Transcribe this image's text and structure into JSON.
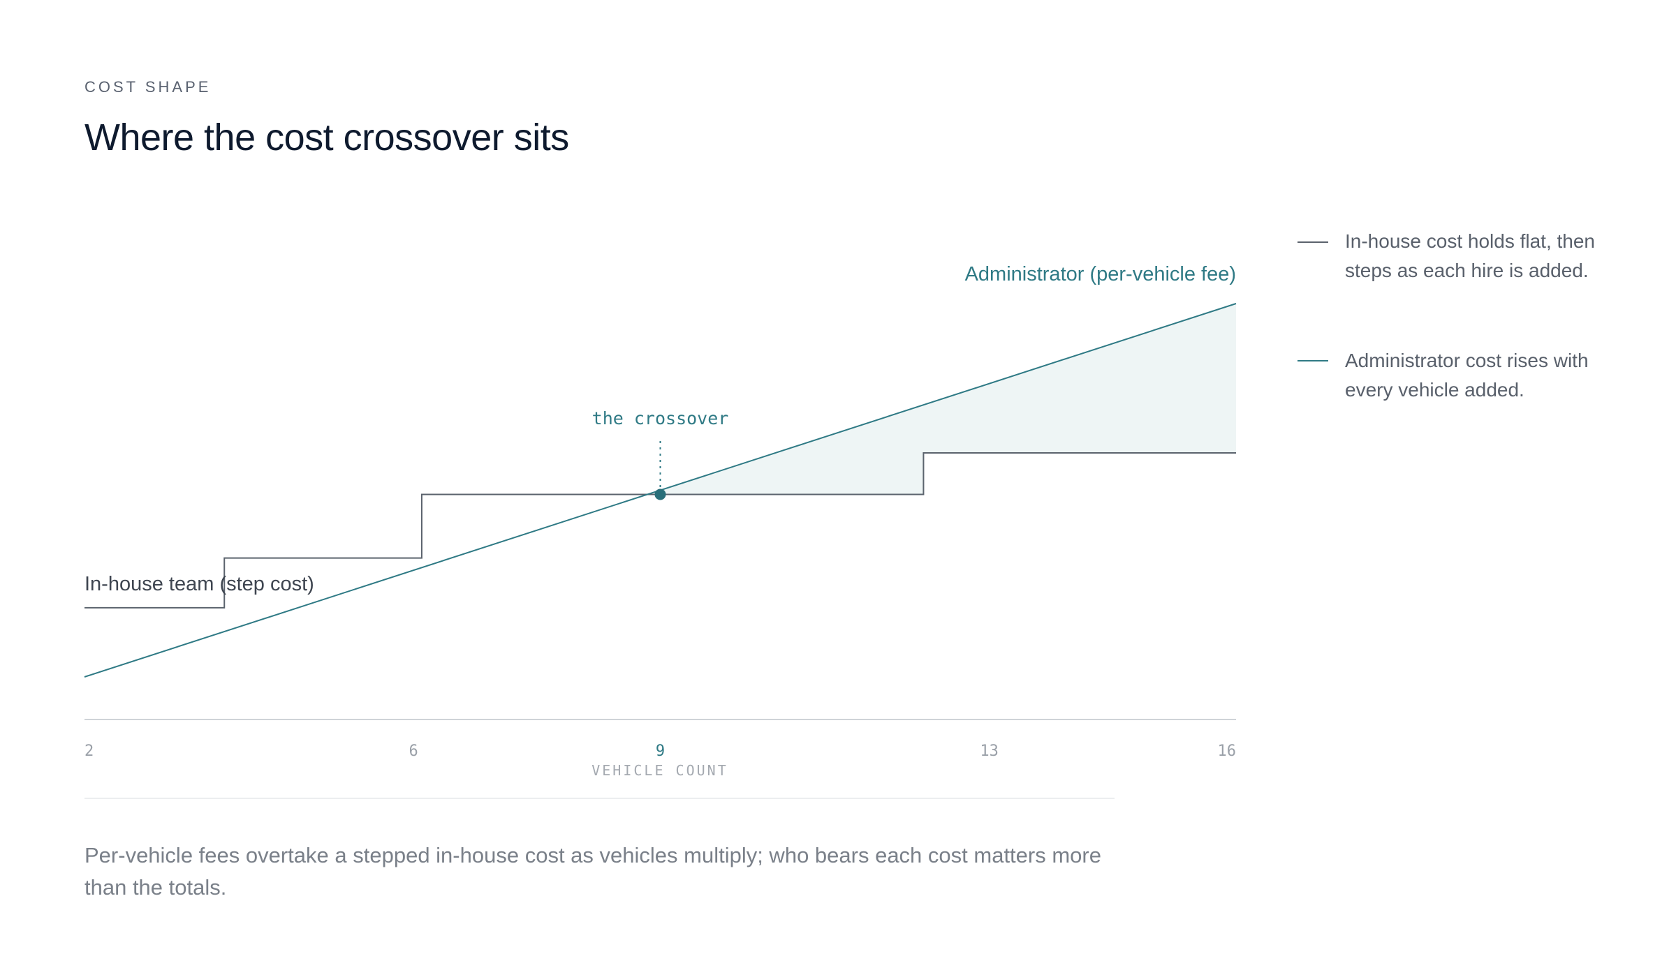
{
  "header": {
    "eyebrow": "COST SHAPE",
    "title": "Where the cost crossover sits"
  },
  "chart_data": {
    "type": "line",
    "xlabel": "VEHICLE COUNT",
    "ylabel": "",
    "x_ticks": [
      2,
      6,
      9,
      13,
      16
    ],
    "xlim": [
      2,
      16
    ],
    "grid": false,
    "series": [
      {
        "name": "In-house team (step cost)",
        "kind": "step",
        "color": "#5b636d",
        "points": [
          [
            2,
            2.0
          ],
          [
            3.7,
            2.0
          ],
          [
            3.7,
            2.9
          ],
          [
            6.1,
            2.9
          ],
          [
            6.1,
            4.05
          ],
          [
            12.2,
            4.05
          ],
          [
            12.2,
            4.8
          ],
          [
            16,
            4.8
          ]
        ]
      },
      {
        "name": "Administrator (per-vehicle fee)",
        "kind": "linear",
        "color": "#2f7a85",
        "points": [
          [
            2,
            0.75
          ],
          [
            16,
            7.5
          ]
        ]
      }
    ],
    "annotations": [
      {
        "label": "the crossover",
        "x": 9,
        "y": 4.05
      }
    ],
    "shaded_region": {
      "from_x": 9,
      "to_x": 16,
      "meaning": "gap where administrator cost exceeds in-house cost"
    }
  },
  "legend": {
    "items": [
      {
        "text": "In-house cost holds flat, then steps as each hire is added.",
        "color": "#5b636d"
      },
      {
        "text": "Administrator cost rises with every vehicle added.",
        "color": "#2f7a85"
      }
    ]
  },
  "caption": "Per-vehicle fees overtake a stepped in-house cost as vehicles multiply; who bears each cost matters more than the totals."
}
